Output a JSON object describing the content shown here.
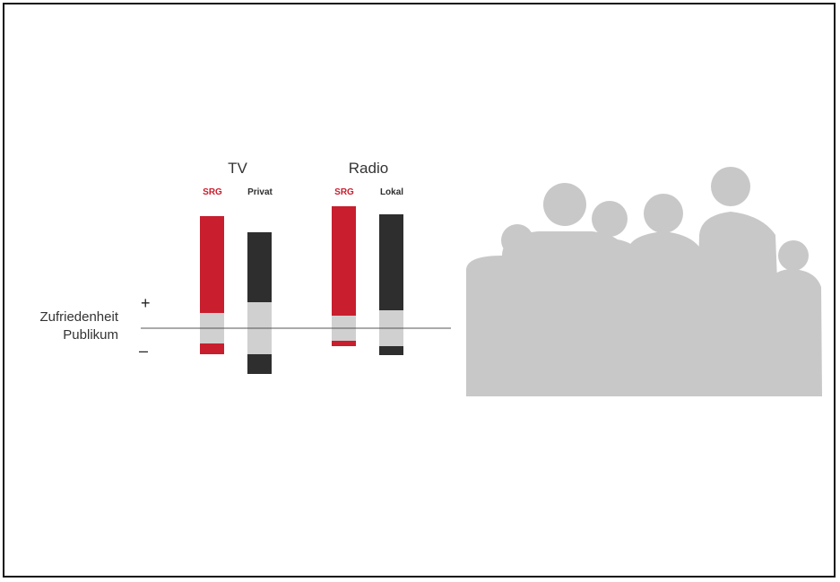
{
  "chart_data": {
    "type": "bar",
    "groups": [
      {
        "title": "TV",
        "bars": [
          {
            "label": "SRG",
            "color": "#c81e2e",
            "segments": {
              "pos_strong": 108,
              "pos_weak": 17,
              "neg_weak": 17,
              "neg_strong": 12
            }
          },
          {
            "label": "Privat",
            "color": "#2e2e2e",
            "segments": {
              "pos_strong": 78,
              "pos_weak": 29,
              "neg_weak": 29,
              "neg_strong": 22
            }
          }
        ]
      },
      {
        "title": "Radio",
        "bars": [
          {
            "label": "SRG",
            "color": "#c81e2e",
            "segments": {
              "pos_strong": 122,
              "pos_weak": 14,
              "neg_weak": 14,
              "neg_strong": 6
            }
          },
          {
            "label": "Lokal",
            "color": "#2e2e2e",
            "segments": {
              "pos_strong": 107,
              "pos_weak": 20,
              "neg_weak": 20,
              "neg_strong": 10
            }
          }
        ]
      }
    ],
    "neutral_color": "#d0d0d0",
    "axis_label_lines": [
      "Zufriedenheit",
      "Publikum"
    ],
    "positive_sign": "+",
    "negative_sign": "–"
  },
  "illustration": {
    "name": "family-silhouette",
    "color": "#c8c8c8"
  }
}
